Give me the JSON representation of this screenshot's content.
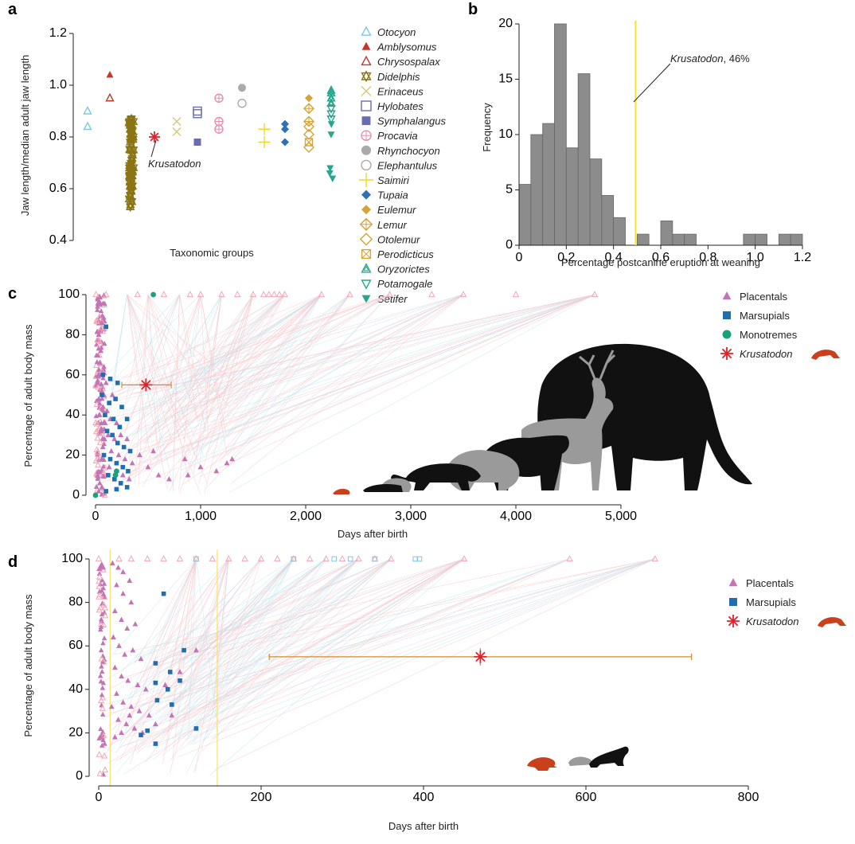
{
  "panels": {
    "a": {
      "letter": "a",
      "chart_data": {
        "type": "scatter",
        "ylabel": "Jaw length/median adult jaw length",
        "xlabel": "Taxonomic groups",
        "ylim": [
          0.4,
          1.2
        ],
        "yticks": [
          "0.4",
          "0.6",
          "0.8",
          "1.0",
          "1.2"
        ],
        "annotation": "Krusatodon",
        "series": [
          {
            "name": "Otocyon",
            "color": "#7ec8e3",
            "marker": "triangle-open",
            "values": [
              0.9,
              0.84
            ]
          },
          {
            "name": "Amblysomus",
            "color": "#c0392b",
            "marker": "triangle-filled",
            "values": [
              1.04
            ]
          },
          {
            "name": "Chrysospalax",
            "color": "#c0392b",
            "marker": "triangle-open",
            "values": [
              0.95
            ]
          },
          {
            "name": "Didelphis",
            "color": "#8b7414",
            "marker": "star-open",
            "values": [
              0.87,
              0.85,
              0.83,
              0.81,
              0.79,
              0.77,
              0.75,
              0.73,
              0.71,
              0.69,
              0.67,
              0.65,
              0.63,
              0.61,
              0.59,
              0.57,
              0.55,
              0.53
            ]
          },
          {
            "name": "Erinaceus",
            "color": "#d9c77a",
            "marker": "x",
            "values": [
              0.86,
              0.82
            ]
          },
          {
            "name": "Hylobates",
            "color": "#6b6bb0",
            "marker": "square-open",
            "values": [
              0.9,
              0.89
            ]
          },
          {
            "name": "Symphalangus",
            "color": "#6b6bb0",
            "marker": "square-filled",
            "values": [
              0.78
            ]
          },
          {
            "name": "Procavia",
            "color": "#e38fb0",
            "marker": "circle-plus",
            "values": [
              0.95,
              0.86,
              0.83
            ]
          },
          {
            "name": "Rhynchocyon",
            "color": "#aaaaaa",
            "marker": "circle-filled",
            "values": [
              0.99
            ]
          },
          {
            "name": "Elephantulus",
            "color": "#aaaaaa",
            "marker": "circle-open",
            "values": [
              0.93
            ]
          },
          {
            "name": "Saimiri",
            "color": "#f2d72a",
            "marker": "plus",
            "values": [
              0.83,
              0.78
            ]
          },
          {
            "name": "Tupaia",
            "color": "#2e6fb5",
            "marker": "diamond-filled",
            "values": [
              0.85,
              0.83,
              0.78
            ]
          },
          {
            "name": "Eulemur",
            "color": "#d4a437",
            "marker": "diamond-filled",
            "values": [
              0.95
            ]
          },
          {
            "name": "Lemur",
            "color": "#d4a437",
            "marker": "diamond-plus",
            "values": [
              0.91,
              0.86
            ]
          },
          {
            "name": "Otolemur",
            "color": "#d4a437",
            "marker": "diamond-open",
            "values": [
              0.84,
              0.81,
              0.76
            ]
          },
          {
            "name": "Perodicticus",
            "color": "#d4a437",
            "marker": "square-x",
            "values": [
              0.78
            ]
          },
          {
            "name": "Oryzorictes",
            "color": "#26a68d",
            "marker": "triangle-open-double",
            "values": [
              0.98,
              0.97,
              0.95,
              0.93
            ]
          },
          {
            "name": "Potamogale",
            "color": "#26a68d",
            "marker": "triangle-down-open",
            "values": [
              0.91,
              0.89,
              0.87
            ]
          },
          {
            "name": "Setifer",
            "color": "#26a68d",
            "marker": "triangle-down-filled",
            "values": [
              0.85,
              0.81,
              0.68,
              0.66,
              0.64
            ]
          },
          {
            "name": "Krusatodon",
            "color": "#e0232a",
            "marker": "asterisk",
            "values": [
              0.8
            ]
          }
        ]
      }
    },
    "b": {
      "letter": "b",
      "chart_data": {
        "type": "bar",
        "title": "",
        "xlabel": "Percentage postcanine eruption at weaning",
        "ylabel": "Frequency",
        "xlim": [
          0,
          1.2
        ],
        "ylim": [
          0,
          20
        ],
        "xticks": [
          "0",
          "0.2",
          "0.4",
          "0.6",
          "0.8",
          "1.0",
          "1.2"
        ],
        "yticks": [
          "0",
          "5",
          "10",
          "15",
          "20"
        ],
        "bin_width": 0.05,
        "bin_starts": [
          0,
          0.05,
          0.1,
          0.15,
          0.2,
          0.25,
          0.3,
          0.35,
          0.4,
          0.45,
          0.5,
          0.55,
          0.6,
          0.65,
          0.7,
          0.75,
          0.8,
          0.85,
          0.9,
          0.95,
          1.0,
          1.05,
          1.1,
          1.15
        ],
        "values": [
          5.5,
          10,
          11,
          20,
          8.8,
          15.5,
          7.8,
          4.5,
          2.5,
          0,
          1,
          0,
          2.2,
          1,
          1,
          0,
          0,
          0,
          0,
          1,
          1,
          0,
          1,
          1
        ],
        "krusatodon_line": 0.46,
        "krusatodon_label": "Krusatodon",
        "krusatodon_value": ", 46%",
        "line_color": "#f5e52a"
      }
    },
    "c": {
      "letter": "c",
      "chart_data": {
        "type": "scatter",
        "xlabel": "Days after birth",
        "ylabel": "Percentage of adult body mass",
        "xlim": [
          0,
          5000
        ],
        "ylim": [
          0,
          100
        ],
        "xticks": [
          "0",
          "1,000",
          "2,000",
          "3,000",
          "4,000",
          "5,000"
        ],
        "yticks": [
          "0",
          "20",
          "40",
          "60",
          "80",
          "100"
        ],
        "legend": [
          "Placentals",
          "Marsupials",
          "Monotremes",
          "Krusatodon"
        ],
        "krusatodon": {
          "x": 480,
          "y": 55,
          "x_err": [
            250,
            720
          ],
          "y_err": [
            52,
            58
          ]
        },
        "placentals_samples": [
          [
            20,
            94
          ],
          [
            60,
            86
          ],
          [
            30,
            80
          ],
          [
            50,
            72
          ],
          [
            40,
            66
          ],
          [
            30,
            60
          ],
          [
            80,
            64
          ],
          [
            20,
            56
          ],
          [
            60,
            52
          ],
          [
            100,
            56
          ],
          [
            30,
            48
          ],
          [
            70,
            44
          ],
          [
            110,
            42
          ],
          [
            160,
            50
          ],
          [
            40,
            40
          ],
          [
            90,
            36
          ],
          [
            140,
            38
          ],
          [
            200,
            36
          ],
          [
            50,
            32
          ],
          [
            120,
            30
          ],
          [
            180,
            28
          ],
          [
            240,
            30
          ],
          [
            300,
            28
          ],
          [
            70,
            24
          ],
          [
            150,
            22
          ],
          [
            220,
            20
          ],
          [
            280,
            18
          ],
          [
            350,
            16
          ],
          [
            60,
            18
          ],
          [
            130,
            14
          ],
          [
            200,
            12
          ],
          [
            260,
            10
          ],
          [
            320,
            8
          ],
          [
            420,
            20
          ],
          [
            550,
            22
          ],
          [
            850,
            18
          ],
          [
            880,
            10
          ],
          [
            1000,
            14
          ],
          [
            1150,
            12
          ],
          [
            1250,
            16
          ],
          [
            1300,
            18
          ],
          [
            20,
            10
          ],
          [
            40,
            6
          ],
          [
            60,
            4
          ],
          [
            30,
            2
          ],
          [
            500,
            14
          ],
          [
            600,
            10
          ],
          [
            700,
            8
          ]
        ],
        "placentals_open_x": [
          5,
          100,
          400,
          650,
          900,
          1000,
          1200,
          1350,
          1500,
          1600,
          1650,
          1700,
          1750,
          1800,
          2150,
          2420,
          2800,
          3200,
          3500,
          4000,
          4750
        ],
        "marsupials_samples": [
          [
            100,
            84
          ],
          [
            70,
            60
          ],
          [
            140,
            58
          ],
          [
            210,
            56
          ],
          [
            60,
            50
          ],
          [
            130,
            46
          ],
          [
            190,
            48
          ],
          [
            250,
            44
          ],
          [
            90,
            40
          ],
          [
            170,
            38
          ],
          [
            230,
            34
          ],
          [
            300,
            38
          ],
          [
            110,
            32
          ],
          [
            160,
            30
          ],
          [
            210,
            26
          ],
          [
            270,
            24
          ],
          [
            330,
            22
          ],
          [
            80,
            20
          ],
          [
            140,
            18
          ],
          [
            200,
            16
          ],
          [
            260,
            14
          ],
          [
            310,
            12
          ],
          [
            120,
            10
          ],
          [
            180,
            8
          ],
          [
            240,
            6
          ],
          [
            300,
            4
          ],
          [
            100,
            2
          ],
          [
            200,
            3
          ]
        ],
        "monotremes_samples": [
          [
            0,
            0
          ],
          [
            190,
            10
          ],
          [
            200,
            12
          ],
          [
            550,
            100
          ]
        ]
      }
    },
    "d": {
      "letter": "d",
      "chart_data": {
        "type": "scatter",
        "xlabel": "Days after birth",
        "ylabel": "Percentage of adult body mass",
        "xlim": [
          0,
          800
        ],
        "ylim": [
          0,
          100
        ],
        "xticks": [
          "0",
          "200",
          "400",
          "600",
          "800"
        ],
        "yticks": [
          "0",
          "20",
          "40",
          "60",
          "80",
          "100"
        ],
        "legend": [
          "Placentals",
          "Marsupials",
          "Krusatodon"
        ],
        "krusatodon": {
          "x": 470,
          "y": 55,
          "x_err": [
            210,
            730
          ],
          "y_err": [
            51,
            59
          ]
        },
        "vertical_lines": [
          14,
          146
        ],
        "placentals_samples": [
          [
            17,
            98
          ],
          [
            24,
            96
          ],
          [
            30,
            94
          ],
          [
            38,
            90
          ],
          [
            22,
            88
          ],
          [
            30,
            84
          ],
          [
            40,
            80
          ],
          [
            20,
            76
          ],
          [
            28,
            72
          ],
          [
            35,
            68
          ],
          [
            45,
            70
          ],
          [
            18,
            64
          ],
          [
            25,
            60
          ],
          [
            32,
            56
          ],
          [
            42,
            58
          ],
          [
            52,
            54
          ],
          [
            20,
            50
          ],
          [
            28,
            46
          ],
          [
            36,
            44
          ],
          [
            48,
            42
          ],
          [
            58,
            40
          ],
          [
            22,
            38
          ],
          [
            30,
            34
          ],
          [
            40,
            32
          ],
          [
            50,
            30
          ],
          [
            62,
            28
          ],
          [
            24,
            26
          ],
          [
            34,
            24
          ],
          [
            44,
            22
          ],
          [
            54,
            20
          ],
          [
            70,
            24
          ],
          [
            82,
            42
          ],
          [
            100,
            48
          ],
          [
            120,
            58
          ],
          [
            90,
            28
          ],
          [
            16,
            32
          ],
          [
            20,
            18
          ],
          [
            28,
            20
          ],
          [
            38,
            28
          ]
        ],
        "placentals_open_x": [
          0,
          25,
          40,
          60,
          80,
          100,
          120,
          140,
          160,
          180,
          200,
          220,
          240,
          260,
          280,
          300,
          320,
          340,
          360,
          450,
          580,
          685
        ],
        "marsupials_samples": [
          [
            80,
            84
          ],
          [
            105,
            58
          ],
          [
            70,
            52
          ],
          [
            88,
            48
          ],
          [
            100,
            44
          ],
          [
            70,
            43
          ],
          [
            85,
            40
          ],
          [
            72,
            35
          ],
          [
            90,
            33
          ],
          [
            60,
            21
          ],
          [
            52,
            19
          ],
          [
            70,
            15
          ],
          [
            120,
            22
          ]
        ],
        "marsupials_open_x": [
          120,
          240,
          290,
          310,
          340,
          390,
          395
        ]
      }
    }
  }
}
